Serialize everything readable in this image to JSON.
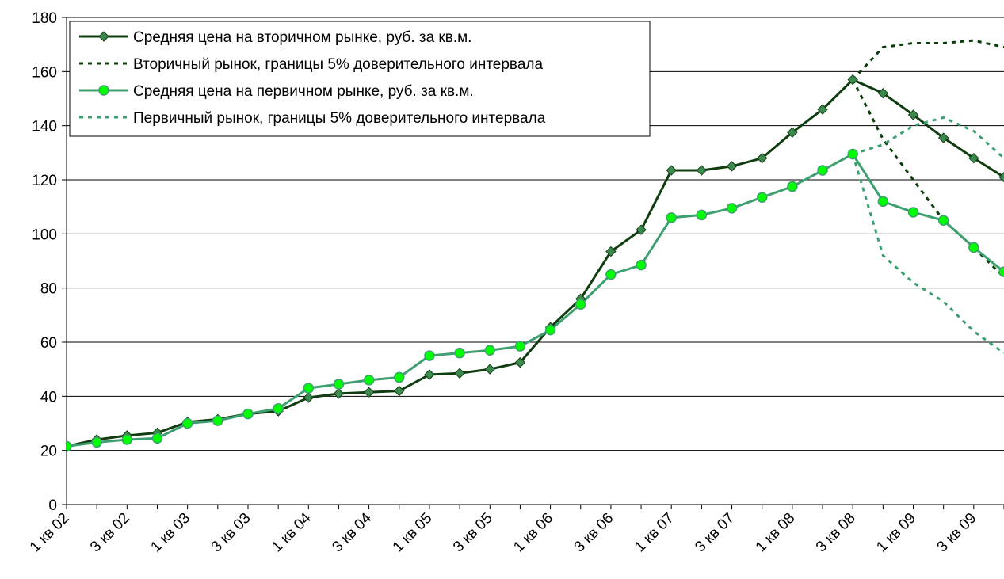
{
  "chart_data": {
    "type": "line",
    "categories": [
      "1 кв 02",
      null,
      "3 кв 02",
      null,
      "1 кв 03",
      null,
      "3 кв 03",
      null,
      "1 кв 04",
      null,
      "3 кв 04",
      null,
      "1 кв 05",
      null,
      "3 кв 05",
      null,
      "1 кв 06",
      null,
      "3 кв 06",
      null,
      "1 кв 07",
      null,
      "3 кв 07",
      null,
      "1 кв 08",
      null,
      "3 кв 08",
      null,
      "1 кв 09",
      null,
      "3 кв 09",
      null
    ],
    "ylim": [
      0,
      180
    ],
    "yticks": [
      0,
      20,
      40,
      60,
      80,
      100,
      120,
      140,
      160,
      180
    ],
    "grid": true,
    "legend": "upper-left",
    "series": [
      {
        "name": "Средняя цена на вторичном рынке, руб. за кв.м.",
        "color": "#0f3d0f",
        "marker": "diamond",
        "marker_color": "#3c8a50",
        "values": [
          21.5,
          24,
          25.5,
          26.5,
          30.5,
          31.5,
          33.5,
          34.5,
          39.5,
          41,
          41.5,
          42,
          48,
          48.5,
          50,
          52.5,
          65.5,
          76,
          93.5,
          101.5,
          123.5,
          123.5,
          125,
          128,
          137.5,
          146,
          157,
          152,
          144,
          135.5,
          128,
          121
        ]
      },
      {
        "name": "Вторичный рынок, границы 5% доверительного интервала",
        "color": "#0a3d0a",
        "dashed": true,
        "upper": [
          null,
          null,
          null,
          null,
          null,
          null,
          null,
          null,
          null,
          null,
          null,
          null,
          null,
          null,
          null,
          null,
          null,
          null,
          null,
          null,
          null,
          null,
          null,
          null,
          null,
          null,
          157,
          169,
          170.5,
          170.5,
          171.5,
          169
        ],
        "lower": [
          null,
          null,
          null,
          null,
          null,
          null,
          null,
          null,
          null,
          null,
          null,
          null,
          null,
          null,
          null,
          null,
          null,
          null,
          null,
          null,
          null,
          null,
          null,
          null,
          null,
          null,
          157,
          135,
          120,
          105,
          95,
          84
        ]
      },
      {
        "name": "Средняя цена на первичном рынке, руб. за кв.м.",
        "color": "#3ea070",
        "marker": "circle",
        "marker_color": "#00ff00",
        "values": [
          21.5,
          23,
          24,
          24.5,
          30,
          31,
          33.5,
          35.5,
          43,
          44.5,
          46,
          47,
          55,
          56,
          57,
          58.5,
          64.5,
          74,
          85,
          88.5,
          106,
          107,
          109.5,
          113.5,
          117.5,
          123.5,
          129.5,
          112,
          108,
          105,
          95,
          86
        ]
      },
      {
        "name": "Первичный рынок, границы 5% доверительного интервала",
        "color": "#3aa070",
        "dashed": true,
        "upper": [
          null,
          null,
          null,
          null,
          null,
          null,
          null,
          null,
          null,
          null,
          null,
          null,
          null,
          null,
          null,
          null,
          null,
          null,
          null,
          null,
          null,
          null,
          null,
          null,
          null,
          null,
          129.5,
          133,
          140,
          143,
          138,
          128
        ],
        "lower": [
          null,
          null,
          null,
          null,
          null,
          null,
          null,
          null,
          null,
          null,
          null,
          null,
          null,
          null,
          null,
          null,
          null,
          null,
          null,
          null,
          null,
          null,
          null,
          null,
          null,
          null,
          129.5,
          92,
          82,
          75,
          64,
          56
        ]
      }
    ]
  }
}
